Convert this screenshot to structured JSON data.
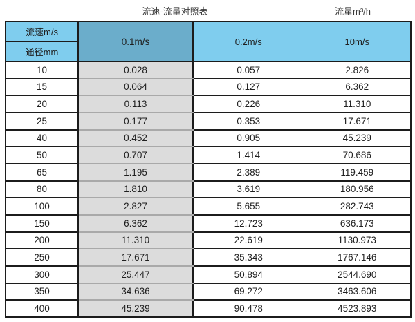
{
  "page": {
    "title_left": "流速-流量对照表",
    "title_right": "流量m³/h"
  },
  "table": {
    "corner": {
      "top": "流速m/s",
      "bottom": "通径mm"
    },
    "columns": [
      "0.1m/s",
      "0.2m/s",
      "10m/s"
    ],
    "rows": [
      {
        "diameter": "10",
        "values": [
          "0.028",
          "0.057",
          "2.826"
        ]
      },
      {
        "diameter": "15",
        "values": [
          "0.064",
          "0.127",
          "6.362"
        ]
      },
      {
        "diameter": "20",
        "values": [
          "0.113",
          "0.226",
          "11.310"
        ]
      },
      {
        "diameter": "25",
        "values": [
          "0.177",
          "0.353",
          "17.671"
        ]
      },
      {
        "diameter": "40",
        "values": [
          "0.452",
          "0.905",
          "45.239"
        ]
      },
      {
        "diameter": "50",
        "values": [
          "0.707",
          "1.414",
          "70.686"
        ]
      },
      {
        "diameter": "65",
        "values": [
          "1.195",
          "2.389",
          "119.459"
        ]
      },
      {
        "diameter": "80",
        "values": [
          "1.810",
          "3.619",
          "180.956"
        ]
      },
      {
        "diameter": "100",
        "values": [
          "2.827",
          "5.655",
          "282.743"
        ]
      },
      {
        "diameter": "150",
        "values": [
          "6.362",
          "12.723",
          "636.173"
        ]
      },
      {
        "diameter": "200",
        "values": [
          "11.310",
          "22.619",
          "1130.973"
        ]
      },
      {
        "diameter": "250",
        "values": [
          "17.671",
          "35.343",
          "1767.146"
        ]
      },
      {
        "diameter": "300",
        "values": [
          "25.447",
          "50.894",
          "2544.690"
        ]
      },
      {
        "diameter": "350",
        "values": [
          "34.636",
          "69.272",
          "3463.606"
        ]
      },
      {
        "diameter": "400",
        "values": [
          "45.239",
          "90.478",
          "4523.893"
        ]
      }
    ],
    "colors": {
      "header_blue": "#7fcdee",
      "header_selected_blue": "#6badcb",
      "selected_column_gray": "#dcdcdc",
      "gray_separator": "#a9a9a9",
      "border_dark": "#1c1c1c",
      "text": "#1f1f1f"
    }
  }
}
